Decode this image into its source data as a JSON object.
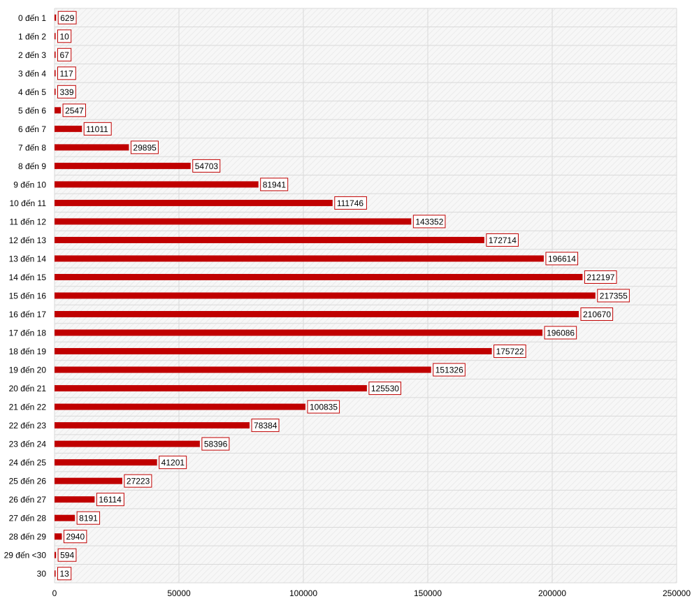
{
  "chart_data": {
    "type": "bar",
    "orientation": "horizontal",
    "title": "",
    "xlabel": "",
    "ylabel": "",
    "xlim": [
      0,
      250000
    ],
    "xticks": [
      "0",
      "50000",
      "100000",
      "150000",
      "200000",
      "250000"
    ],
    "grid": true,
    "legend": "none",
    "categories": [
      "0 đến 1",
      "1 đến 2",
      "2 đến 3",
      "3 đến 4",
      "4 đến 5",
      "5 đến 6",
      "6 đến 7",
      "7 đến 8",
      "8 đến 9",
      "9 đến 10",
      "10 đến 11",
      "11 đến 12",
      "12 đến 13",
      "13 đến 14",
      "14 đến 15",
      "15 đến 16",
      "16 đến 17",
      "17 đến 18",
      "18 đến 19",
      "19 đến 20",
      "20 đến 21",
      "21 đến 22",
      "22 đến 23",
      "23 đến 24",
      "24 đến 25",
      "25 đến 26",
      "26 đến 27",
      "27 đến 28",
      "28 đến 29",
      "29 đến <30",
      "30"
    ],
    "values": [
      629,
      10,
      67,
      117,
      339,
      2547,
      11011,
      29895,
      54703,
      81941,
      111746,
      143352,
      172714,
      196614,
      212197,
      217355,
      210670,
      196086,
      175722,
      151326,
      125530,
      100835,
      78384,
      58396,
      41201,
      27223,
      16114,
      8191,
      2940,
      594,
      13
    ],
    "colors": {
      "bar": "#c00000",
      "label_border": "#c00000",
      "grid": "#d9d9d9",
      "plot_bg": "#f2f2f2"
    }
  }
}
